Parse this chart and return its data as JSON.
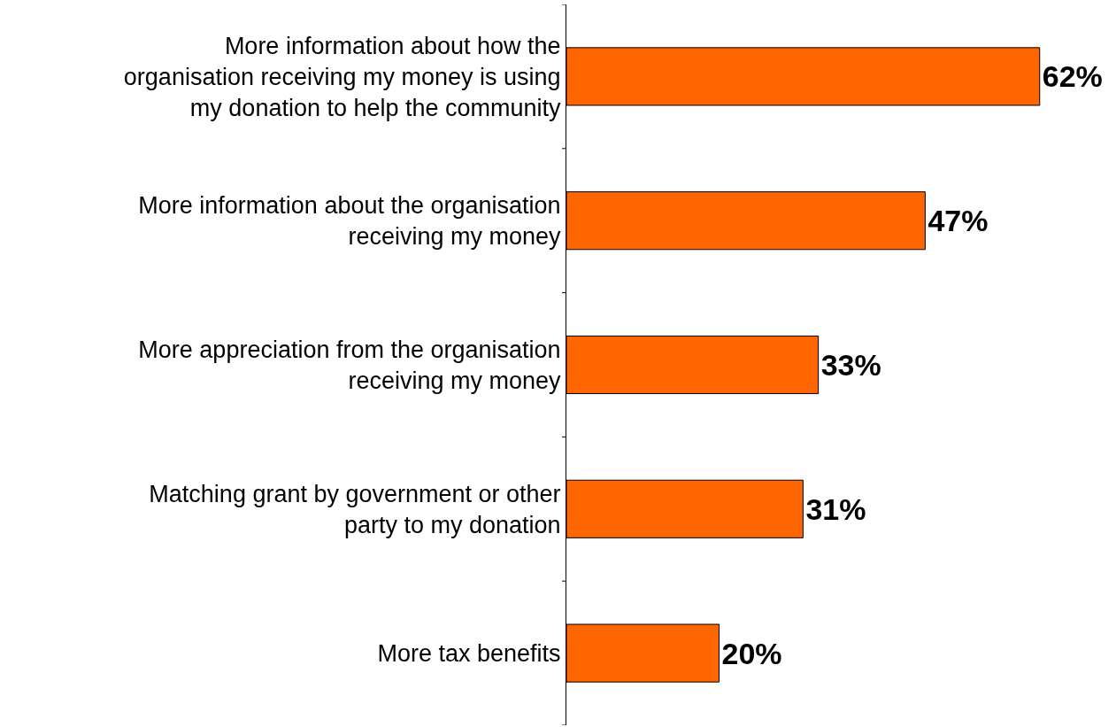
{
  "chart_data": {
    "type": "bar",
    "orientation": "horizontal",
    "categories": [
      "More information about how the organisation receiving my money is using my donation to help the community",
      "More information about the organisation receiving my money",
      "More appreciation from the organisation receiving my money",
      "Matching grant by government or other party to my donation",
      "More tax benefits"
    ],
    "values": [
      62,
      47,
      33,
      31,
      20
    ],
    "value_labels": [
      "62%",
      "47%",
      "33%",
      "31%",
      "20%"
    ],
    "color": "#ff6600",
    "xlim": [
      0,
      72
    ],
    "tick_labels": "y"
  }
}
